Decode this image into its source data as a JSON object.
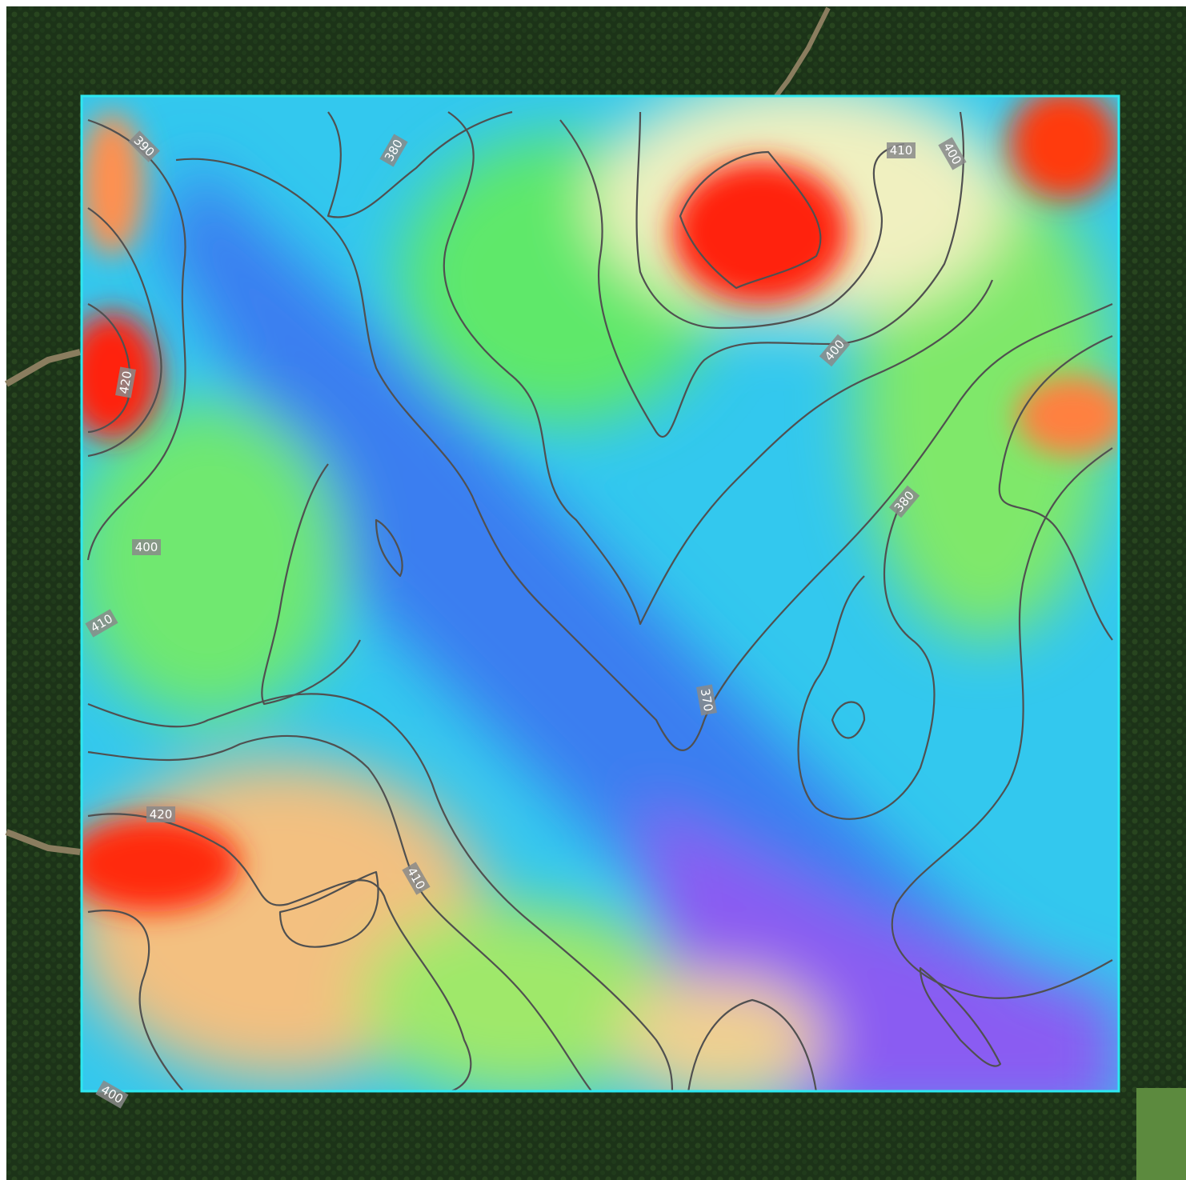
{
  "contour_labels": [
    "390",
    "380",
    "410",
    "400",
    "420",
    "400",
    "380",
    "400",
    "410",
    "370",
    "420",
    "410",
    "400"
  ]
}
